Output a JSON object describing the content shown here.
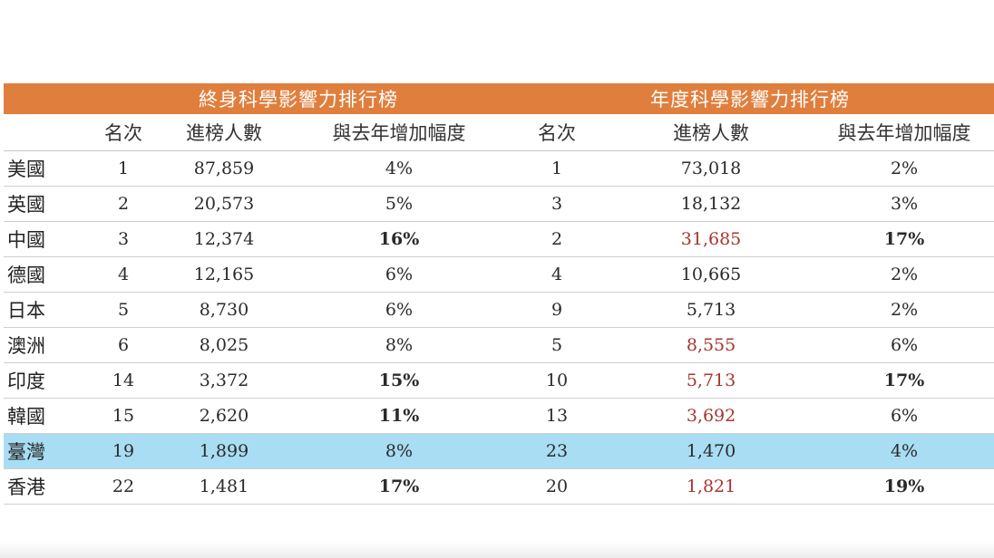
{
  "table": {
    "groups": {
      "lifetime": "終身科學影響力排行榜",
      "annual": "年度科學影響力排行榜"
    },
    "headers": {
      "rank": "名次",
      "count": "進榜人數",
      "growth": "與去年增加幅度"
    },
    "rows": [
      {
        "country": "美國",
        "l_rank": "1",
        "l_count": "87,859",
        "l_growth": "4%",
        "a_rank": "1",
        "a_count": "73,018",
        "a_growth": "2%"
      },
      {
        "country": "英國",
        "l_rank": "2",
        "l_count": "20,573",
        "l_growth": "5%",
        "a_rank": "3",
        "a_count": "18,132",
        "a_growth": "3%"
      },
      {
        "country": "中國",
        "l_rank": "3",
        "l_count": "12,374",
        "l_growth": "16%",
        "a_rank": "2",
        "a_count": "31,685",
        "a_growth": "17%"
      },
      {
        "country": "德國",
        "l_rank": "4",
        "l_count": "12,165",
        "l_growth": "6%",
        "a_rank": "4",
        "a_count": "10,665",
        "a_growth": "2%"
      },
      {
        "country": "日本",
        "l_rank": "5",
        "l_count": "8,730",
        "l_growth": "6%",
        "a_rank": "9",
        "a_count": "5,713",
        "a_growth": "2%"
      },
      {
        "country": "澳洲",
        "l_rank": "6",
        "l_count": "8,025",
        "l_growth": "8%",
        "a_rank": "5",
        "a_count": "8,555",
        "a_growth": "6%"
      },
      {
        "country": "印度",
        "l_rank": "14",
        "l_count": "3,372",
        "l_growth": "15%",
        "a_rank": "10",
        "a_count": "5,713",
        "a_growth": "17%"
      },
      {
        "country": "韓國",
        "l_rank": "15",
        "l_count": "2,620",
        "l_growth": "11%",
        "a_rank": "13",
        "a_count": "3,692",
        "a_growth": "6%"
      },
      {
        "country": "臺灣",
        "l_rank": "19",
        "l_count": "1,899",
        "l_growth": "8%",
        "a_rank": "23",
        "a_count": "1,470",
        "a_growth": "4%"
      },
      {
        "country": "香港",
        "l_rank": "22",
        "l_count": "1,481",
        "l_growth": "17%",
        "a_rank": "20",
        "a_count": "1,821",
        "a_growth": "19%"
      }
    ]
  },
  "colors": {
    "header_bg": "#e07f3d",
    "header_text": "#ffffff",
    "highlight_row": "#a8ddf3",
    "emphasis_red": "#a7352f"
  }
}
